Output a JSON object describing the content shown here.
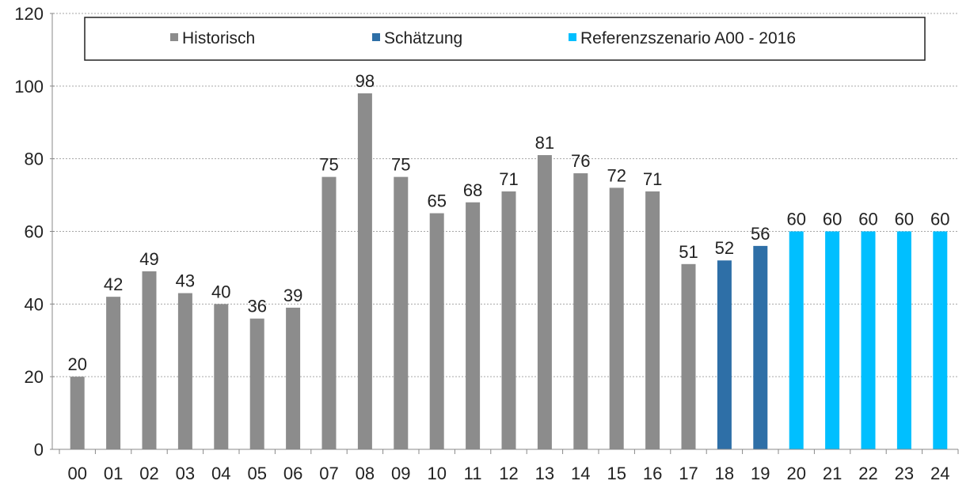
{
  "chart_data": {
    "type": "bar",
    "title": "",
    "xlabel": "",
    "ylabel": "",
    "ylim": [
      0,
      120
    ],
    "yticks": [
      0,
      20,
      40,
      60,
      80,
      100,
      120
    ],
    "grid": true,
    "legend_position": "top",
    "categories": [
      "00",
      "01",
      "02",
      "03",
      "04",
      "05",
      "06",
      "07",
      "08",
      "09",
      "10",
      "11",
      "12",
      "13",
      "14",
      "15",
      "16",
      "17",
      "18",
      "19",
      "20",
      "21",
      "22",
      "23",
      "24"
    ],
    "values": [
      20,
      42,
      49,
      43,
      40,
      36,
      39,
      75,
      98,
      75,
      65,
      68,
      71,
      81,
      76,
      72,
      71,
      51,
      52,
      56,
      60,
      60,
      60,
      60,
      60
    ],
    "series_of_point": [
      0,
      0,
      0,
      0,
      0,
      0,
      0,
      0,
      0,
      0,
      0,
      0,
      0,
      0,
      0,
      0,
      0,
      0,
      1,
      1,
      2,
      2,
      2,
      2,
      2
    ],
    "series": [
      {
        "name": "Historisch",
        "color": "#8c8c8c"
      },
      {
        "name": "Schätzung",
        "color": "#2e6fa7"
      },
      {
        "name": "Referenzszenario A00 - 2016",
        "color": "#00bfff"
      }
    ]
  }
}
